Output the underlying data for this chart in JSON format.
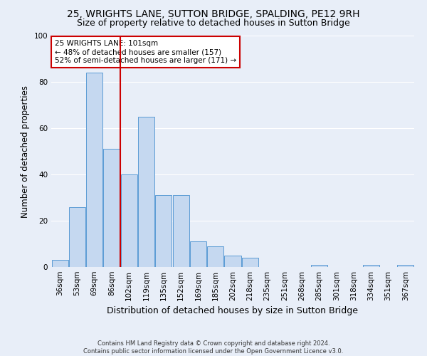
{
  "title": "25, WRIGHTS LANE, SUTTON BRIDGE, SPALDING, PE12 9RH",
  "subtitle": "Size of property relative to detached houses in Sutton Bridge",
  "xlabel": "Distribution of detached houses by size in Sutton Bridge",
  "ylabel": "Number of detached properties",
  "categories": [
    "36sqm",
    "53sqm",
    "69sqm",
    "86sqm",
    "102sqm",
    "119sqm",
    "135sqm",
    "152sqm",
    "169sqm",
    "185sqm",
    "202sqm",
    "218sqm",
    "235sqm",
    "251sqm",
    "268sqm",
    "285sqm",
    "301sqm",
    "318sqm",
    "334sqm",
    "351sqm",
    "367sqm"
  ],
  "values": [
    3,
    26,
    84,
    51,
    40,
    65,
    31,
    31,
    11,
    9,
    5,
    4,
    0,
    0,
    0,
    1,
    0,
    0,
    1,
    0,
    1
  ],
  "bar_color": "#c5d8f0",
  "bar_edge_color": "#5b9bd5",
  "vline_index": 4,
  "vline_color": "#cc0000",
  "annotation_text": "25 WRIGHTS LANE: 101sqm\n← 48% of detached houses are smaller (157)\n52% of semi-detached houses are larger (171) →",
  "annotation_box_edge_color": "#cc0000",
  "annotation_box_face_color": "#ffffff",
  "background_color": "#e8eef8",
  "grid_color": "#ffffff",
  "ylim": [
    0,
    100
  ],
  "title_fontsize": 10,
  "subtitle_fontsize": 9,
  "xlabel_fontsize": 9,
  "ylabel_fontsize": 8.5,
  "tick_fontsize": 7.5,
  "annot_fontsize": 7.5,
  "footer_text": "Contains HM Land Registry data © Crown copyright and database right 2024.\nContains public sector information licensed under the Open Government Licence v3.0."
}
